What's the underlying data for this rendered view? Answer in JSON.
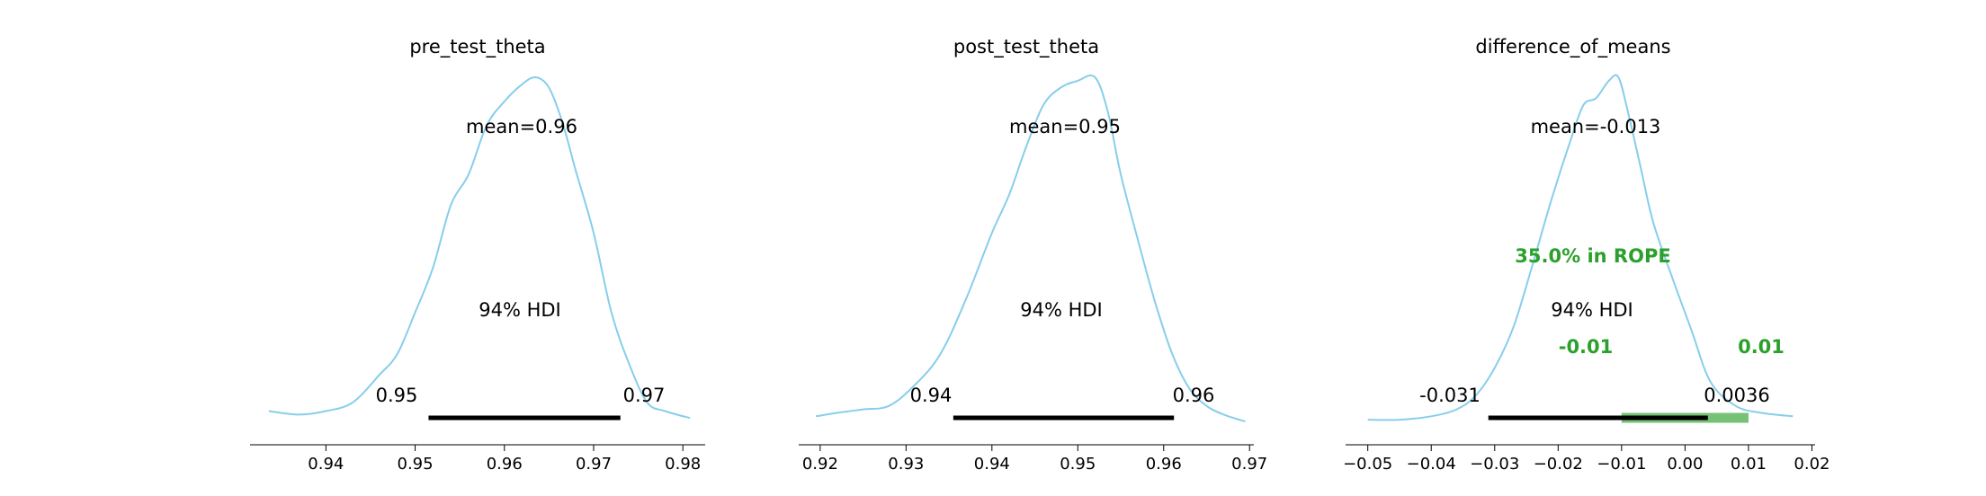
{
  "chart_data": [
    {
      "type": "area",
      "title": "pre_test_theta",
      "xlim": [
        0.9315,
        0.9825
      ],
      "xticks": [
        0.94,
        0.95,
        0.96,
        0.97,
        0.98
      ],
      "xtick_labels": [
        "0.94",
        "0.95",
        "0.96",
        "0.97",
        "0.98"
      ],
      "mean_label": "mean=0.96",
      "hdi_label": "94% HDI",
      "hdi": [
        0.9515,
        0.973
      ],
      "hdi_low_label": "0.95",
      "hdi_high_label": "0.97",
      "kde_color": "#87ceeb",
      "density": {
        "x": [
          0.9336,
          0.937,
          0.94,
          0.943,
          0.946,
          0.948,
          0.95,
          0.952,
          0.954,
          0.956,
          0.958,
          0.96,
          0.962,
          0.9635,
          0.965,
          0.9665,
          0.968,
          0.97,
          0.972,
          0.974,
          0.976,
          0.978,
          0.9808
        ],
        "y": [
          0.035,
          0.025,
          0.035,
          0.06,
          0.14,
          0.2,
          0.32,
          0.45,
          0.63,
          0.72,
          0.86,
          0.93,
          0.98,
          1.0,
          0.97,
          0.87,
          0.73,
          0.55,
          0.32,
          0.17,
          0.06,
          0.035,
          0.015
        ]
      }
    },
    {
      "type": "area",
      "title": "post_test_theta",
      "xlim": [
        0.9175,
        0.9705
      ],
      "xticks": [
        0.92,
        0.93,
        0.94,
        0.95,
        0.96,
        0.97
      ],
      "xtick_labels": [
        "0.92",
        "0.93",
        "0.94",
        "0.95",
        "0.96",
        "0.97"
      ],
      "mean_label": "mean=0.95",
      "hdi_label": "94% HDI",
      "hdi": [
        0.9355,
        0.9612
      ],
      "hdi_low_label": "0.94",
      "hdi_high_label": "0.96",
      "kde_color": "#87ceeb",
      "density": {
        "x": [
          0.9195,
          0.922,
          0.925,
          0.928,
          0.931,
          0.934,
          0.937,
          0.94,
          0.942,
          0.944,
          0.946,
          0.948,
          0.95,
          0.952,
          0.9535,
          0.955,
          0.957,
          0.959,
          0.961,
          0.963,
          0.965,
          0.967,
          0.9695
        ],
        "y": [
          0.02,
          0.03,
          0.04,
          0.05,
          0.11,
          0.2,
          0.36,
          0.55,
          0.66,
          0.8,
          0.92,
          0.97,
          0.99,
          1.0,
          0.9,
          0.72,
          0.53,
          0.35,
          0.2,
          0.1,
          0.05,
          0.025,
          0.005
        ]
      }
    },
    {
      "type": "area",
      "title": "difference_of_means",
      "xlim": [
        -0.0535,
        0.0205
      ],
      "xticks": [
        -0.05,
        -0.04,
        -0.03,
        -0.02,
        -0.01,
        0.0,
        0.01,
        0.02
      ],
      "xtick_labels": [
        "−0.05",
        "−0.04",
        "−0.03",
        "−0.02",
        "−0.01",
        "0.00",
        "0.01",
        "0.02"
      ],
      "mean_label": "mean=-0.013",
      "hdi_label": "94% HDI",
      "hdi": [
        -0.031,
        0.0036
      ],
      "hdi_low_label": "-0.031",
      "hdi_high_label": "0.0036",
      "rope": [
        -0.01,
        0.01
      ],
      "rope_label": "35.0% in ROPE",
      "rope_low_label": "-0.01",
      "rope_high_label": "0.01",
      "rope_color": "#2ca02c",
      "kde_color": "#87ceeb",
      "density": {
        "x": [
          -0.05,
          -0.045,
          -0.04,
          -0.036,
          -0.033,
          -0.03,
          -0.027,
          -0.024,
          -0.021,
          -0.018,
          -0.016,
          -0.014,
          -0.012,
          -0.0105,
          -0.009,
          -0.007,
          -0.005,
          -0.002,
          0.001,
          0.004,
          0.008,
          0.012,
          0.017
        ],
        "y": [
          0.01,
          0.01,
          0.02,
          0.04,
          0.08,
          0.16,
          0.28,
          0.46,
          0.65,
          0.82,
          0.92,
          0.94,
          0.99,
          1.0,
          0.9,
          0.74,
          0.58,
          0.42,
          0.27,
          0.12,
          0.05,
          0.03,
          0.02
        ]
      }
    }
  ]
}
